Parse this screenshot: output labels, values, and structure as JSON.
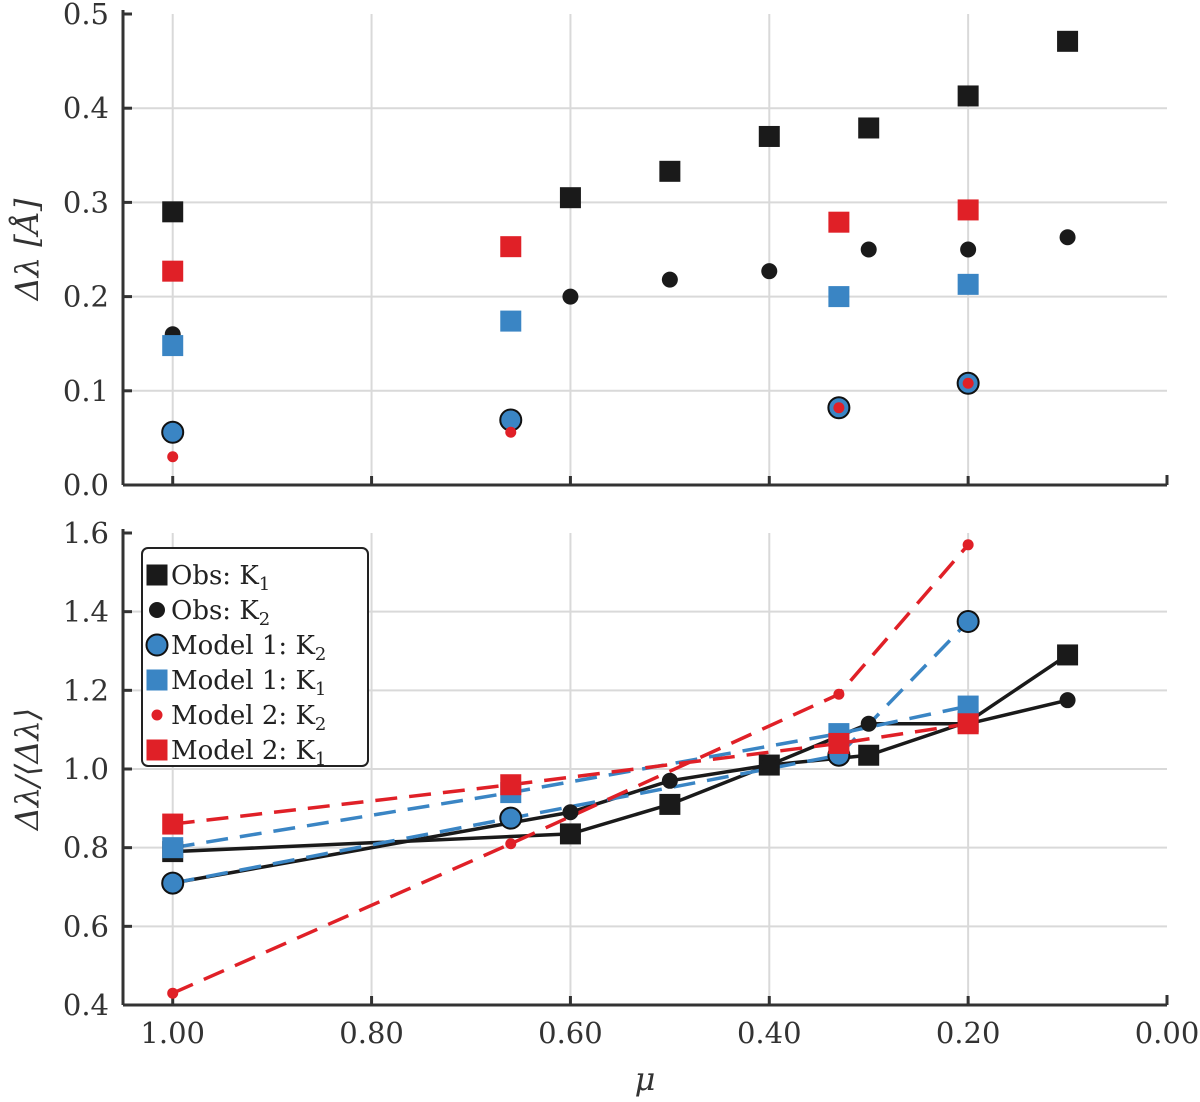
{
  "chart_data": [
    {
      "type": "scatter",
      "xlabel": "",
      "ylabel": "Δλ [Å]",
      "xlim": [
        1.05,
        0.0
      ],
      "ylim": [
        0.0,
        0.5
      ],
      "x_ticks": [
        "1.00",
        "0.80",
        "0.60",
        "0.40",
        "0.20",
        "0.00"
      ],
      "y_ticks": [
        "0.0",
        "0.1",
        "0.2",
        "0.3",
        "0.4",
        "0.5"
      ],
      "grid": true,
      "series": [
        {
          "name": "Obs: K1",
          "marker": "square",
          "color": "#1a1a1a",
          "x": [
            1.0,
            0.6,
            0.5,
            0.4,
            0.3,
            0.2,
            0.1
          ],
          "y": [
            0.29,
            0.305,
            0.333,
            0.37,
            0.379,
            0.413,
            0.471
          ]
        },
        {
          "name": "Obs: K2",
          "marker": "circle",
          "color": "#1a1a1a",
          "x": [
            1.0,
            0.6,
            0.5,
            0.4,
            0.3,
            0.2,
            0.1
          ],
          "y": [
            0.16,
            0.2,
            0.218,
            0.227,
            0.25,
            0.25,
            0.263
          ]
        },
        {
          "name": "Model 1: K2",
          "marker": "circle-outline",
          "color": "#3a85c4",
          "x": [
            1.0,
            0.66,
            0.33,
            0.2
          ],
          "y": [
            0.056,
            0.069,
            0.082,
            0.108
          ]
        },
        {
          "name": "Model 1: K1",
          "marker": "square",
          "color": "#3a85c4",
          "x": [
            1.0,
            0.66,
            0.33,
            0.2
          ],
          "y": [
            0.148,
            0.174,
            0.2,
            0.213
          ]
        },
        {
          "name": "Model 2: K2",
          "marker": "small-circle",
          "color": "#e02027",
          "x": [
            1.0,
            0.66,
            0.33,
            0.2
          ],
          "y": [
            0.03,
            0.056,
            0.082,
            0.108
          ]
        },
        {
          "name": "Model 2: K1",
          "marker": "square",
          "color": "#e02027",
          "x": [
            1.0,
            0.66,
            0.33,
            0.2
          ],
          "y": [
            0.227,
            0.253,
            0.279,
            0.292
          ]
        }
      ]
    },
    {
      "type": "line",
      "xlabel": "μ",
      "ylabel": "Δλ/⟨Δλ⟩",
      "xlim": [
        1.05,
        0.0
      ],
      "ylim": [
        0.4,
        1.6
      ],
      "x_ticks": [
        "1.00",
        "0.80",
        "0.60",
        "0.40",
        "0.20",
        "0.00"
      ],
      "y_ticks": [
        "0.4",
        "0.6",
        "0.8",
        "1.0",
        "1.2",
        "1.4",
        "1.6"
      ],
      "grid": true,
      "legend_position": "upper-left",
      "series": [
        {
          "name": "Obs: K1",
          "sub": "1",
          "marker": "square",
          "color": "#1a1a1a",
          "line": "solid",
          "x": [
            1.0,
            0.6,
            0.5,
            0.4,
            0.3,
            0.2,
            0.1
          ],
          "y": [
            0.79,
            0.835,
            0.91,
            1.01,
            1.035,
            1.12,
            1.29
          ]
        },
        {
          "name": "Obs: K2",
          "sub": "2",
          "marker": "circle",
          "color": "#1a1a1a",
          "line": "solid",
          "x": [
            1.0,
            0.6,
            0.5,
            0.4,
            0.3,
            0.2,
            0.1
          ],
          "y": [
            0.71,
            0.89,
            0.97,
            1.01,
            1.115,
            1.115,
            1.175
          ]
        },
        {
          "name": "Model 1: K2",
          "sub": "2",
          "marker": "circle-outline",
          "color": "#3a85c4",
          "line": "dashed",
          "x": [
            1.0,
            0.66,
            0.33,
            0.2
          ],
          "y": [
            0.71,
            0.875,
            1.035,
            1.375
          ]
        },
        {
          "name": "Model 1: K1",
          "sub": "1",
          "marker": "square",
          "color": "#3a85c4",
          "line": "dashed",
          "x": [
            1.0,
            0.66,
            0.33,
            0.2
          ],
          "y": [
            0.8,
            0.94,
            1.09,
            1.16
          ]
        },
        {
          "name": "Model 2: K2",
          "sub": "2",
          "marker": "small-circle",
          "color": "#e02027",
          "line": "dashed",
          "x": [
            1.0,
            0.66,
            0.33,
            0.2
          ],
          "y": [
            0.43,
            0.81,
            1.19,
            1.57
          ]
        },
        {
          "name": "Model 2: K1",
          "sub": "1",
          "marker": "square",
          "color": "#e02027",
          "line": "dashed",
          "x": [
            1.0,
            0.66,
            0.33,
            0.2
          ],
          "y": [
            0.86,
            0.96,
            1.065,
            1.115
          ]
        }
      ],
      "legend": [
        {
          "prefix": "Obs: K",
          "sub": "1"
        },
        {
          "prefix": "Obs: K",
          "sub": "2"
        },
        {
          "prefix": "Model 1: K",
          "sub": "2"
        },
        {
          "prefix": "Model 1: K",
          "sub": "1"
        },
        {
          "prefix": "Model 2: K",
          "sub": "2"
        },
        {
          "prefix": "Model 2: K",
          "sub": "1"
        }
      ]
    }
  ]
}
